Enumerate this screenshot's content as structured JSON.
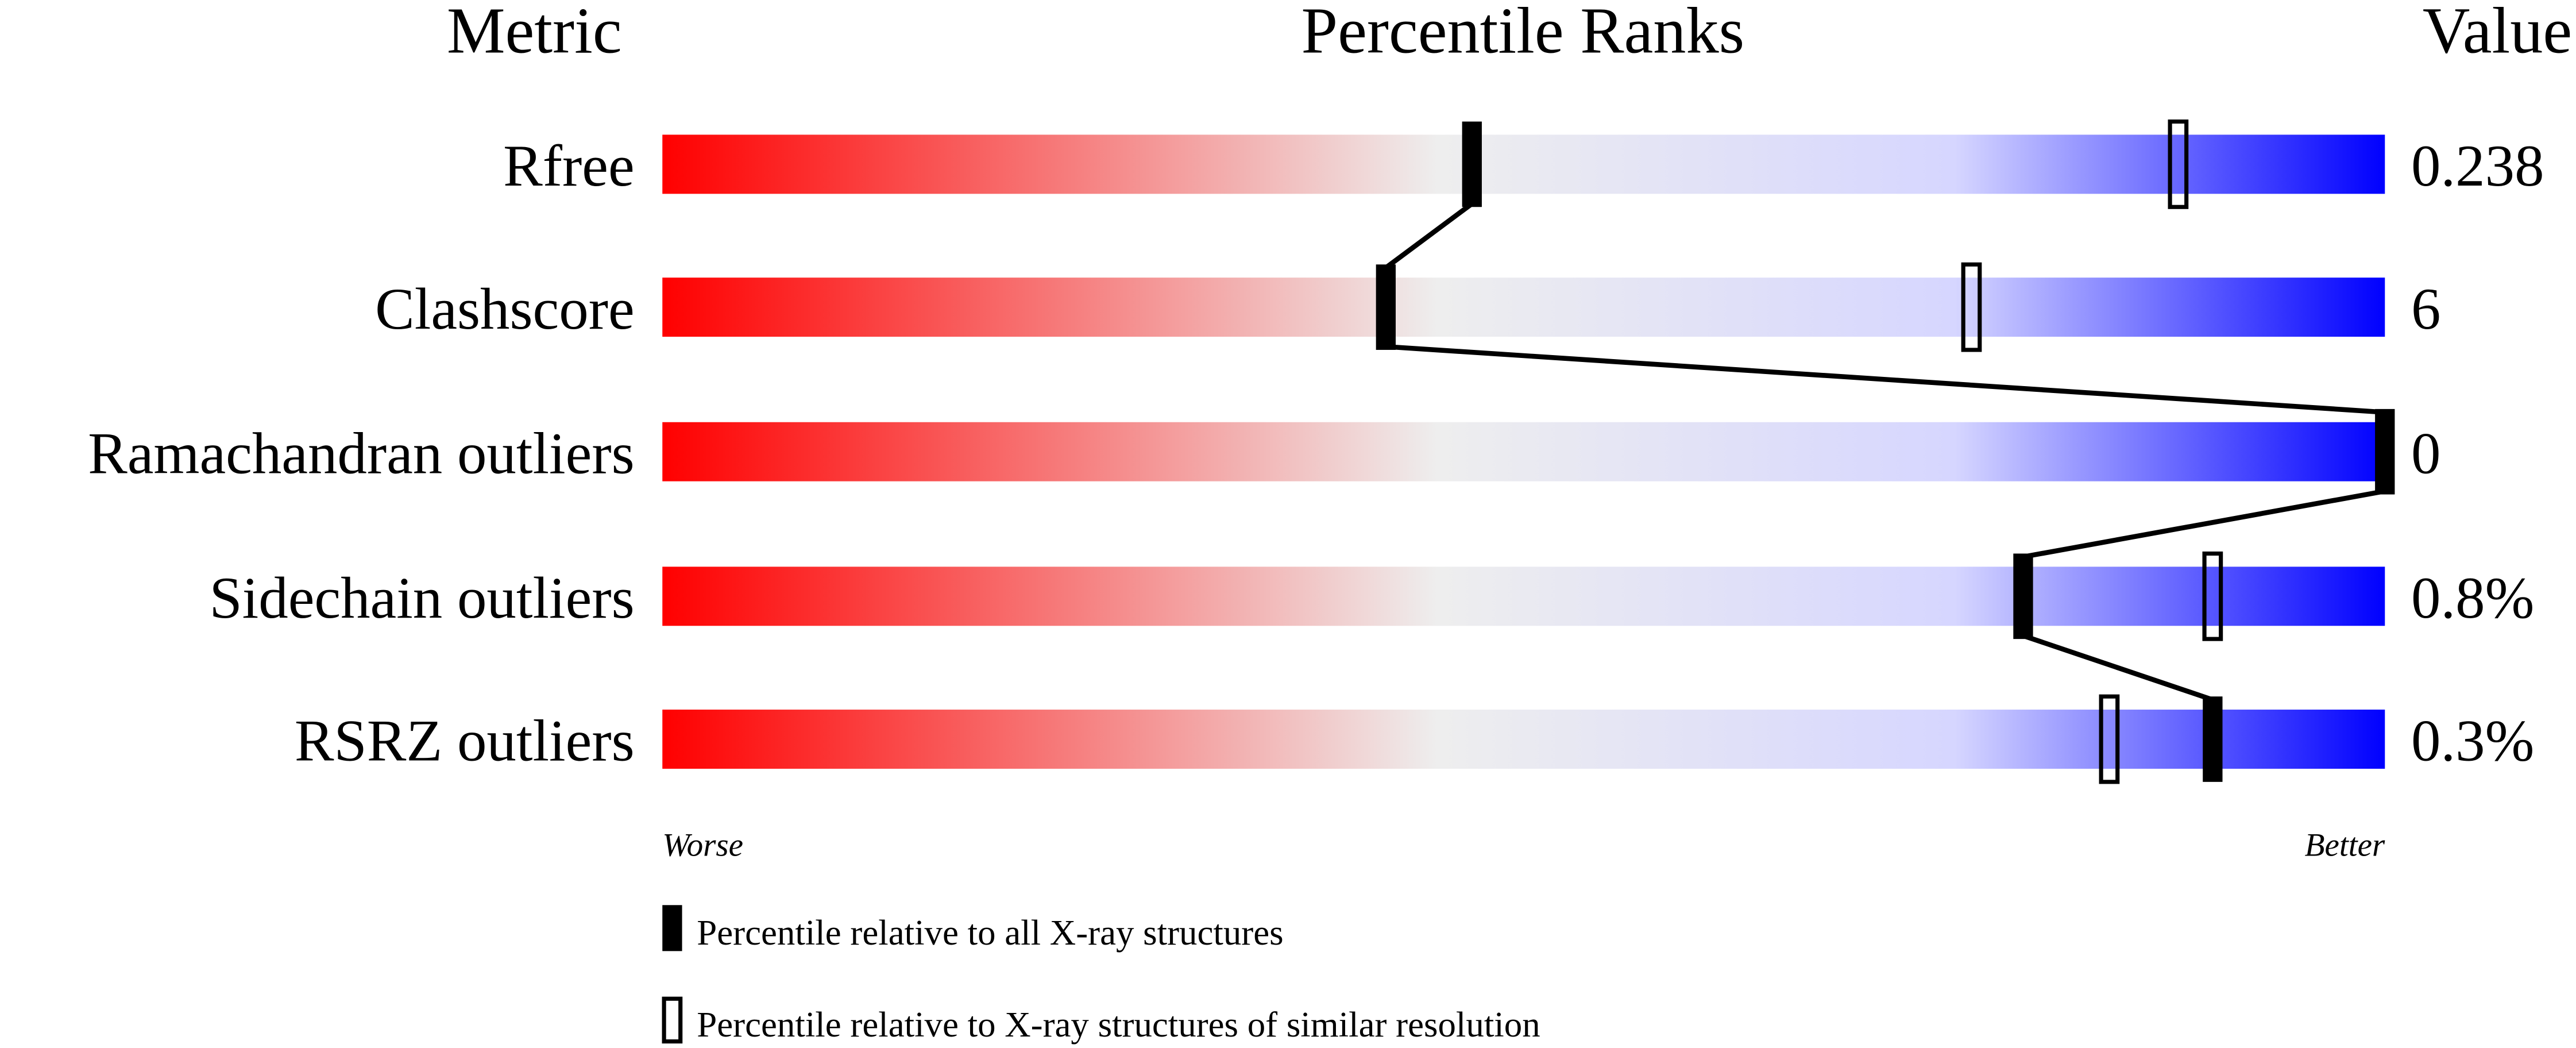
{
  "chart_data": {
    "type": "percentile-slider",
    "headers": {
      "metric": "Metric",
      "ranks": "Percentile Ranks",
      "value": "Value"
    },
    "xlim": [
      0,
      100
    ],
    "axis_labels": {
      "left": "Worse",
      "right": "Better"
    },
    "gradient_colors": [
      "#ff0000",
      "#eeeeee",
      "#d6d6ff",
      "#0000ff"
    ],
    "rows": [
      {
        "metric": "Rfree",
        "value": "0.238",
        "percentile_all": 47,
        "percentile_similar": 88
      },
      {
        "metric": "Clashscore",
        "value": "6",
        "percentile_all": 42,
        "percentile_similar": 76
      },
      {
        "metric": "Ramachandran outliers",
        "value": "0",
        "percentile_all": 100,
        "percentile_similar": 100
      },
      {
        "metric": "Sidechain outliers",
        "value": "0.8%",
        "percentile_all": 79,
        "percentile_similar": 90
      },
      {
        "metric": "RSRZ outliers",
        "value": "0.3%",
        "percentile_all": 90,
        "percentile_similar": 84
      }
    ],
    "legend": [
      {
        "marker": "filled",
        "label": "Percentile relative to all X-ray structures"
      },
      {
        "marker": "open",
        "label": "Percentile relative to X-ray structures of similar resolution"
      }
    ]
  }
}
